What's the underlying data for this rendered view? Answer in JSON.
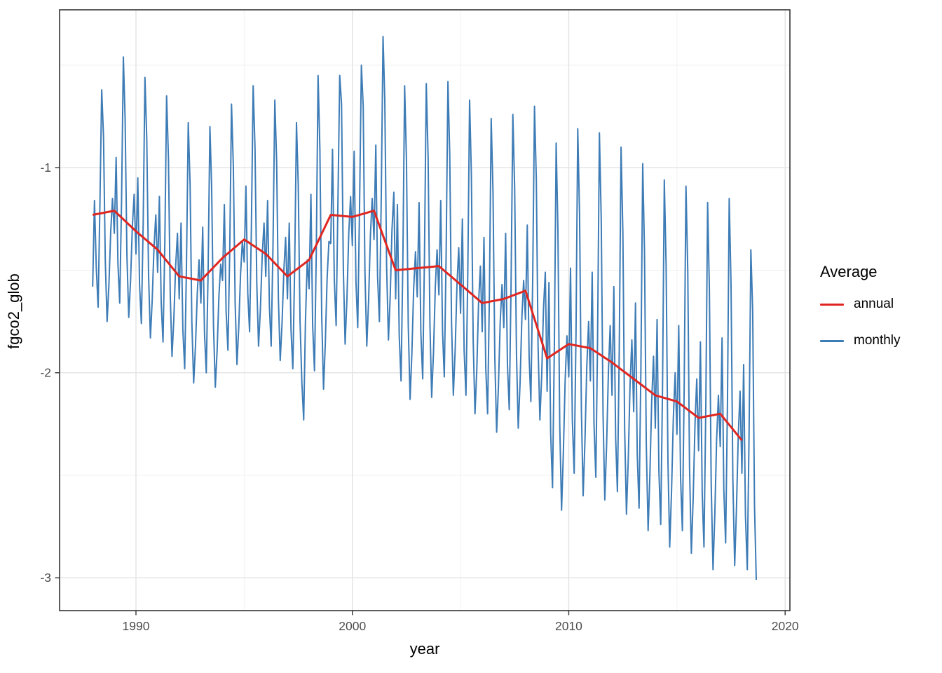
{
  "page": {
    "background": "#ffffff"
  },
  "axes": {
    "x_title": "year",
    "y_title": "fgco2_glob",
    "x_tick_labels": [
      "1990",
      "2000",
      "2010",
      "2020"
    ],
    "y_tick_labels": [
      "-1",
      "-2",
      "-3"
    ]
  },
  "legend": {
    "title": "Average",
    "entries": [
      {
        "label": "annual",
        "color": "#e02620"
      },
      {
        "label": "monthly",
        "color": "#3e7cb6"
      }
    ]
  },
  "chart_data": {
    "type": "line",
    "title": "",
    "xlabel": "year",
    "ylabel": "fgco2_glob",
    "xlim": [
      1986.47,
      2020.22
    ],
    "ylim": [
      -3.16,
      -0.23
    ],
    "x_major_ticks": [
      1990,
      2000,
      2010,
      2020
    ],
    "x_minor_gridlines": [
      1995,
      2005,
      2015
    ],
    "y_major_ticks": [
      -1,
      -2,
      -3
    ],
    "y_minor_gridlines": [
      -0.5,
      -1.5,
      -2.5
    ],
    "grid": {
      "major_color": "#e3e3e3",
      "minor_color": "#f1f1f1",
      "panel_border": "#333333",
      "tick_color": "#333333",
      "tick_label_color": "#4d4d4d"
    },
    "legend_position": "right",
    "series": [
      {
        "name": "annual",
        "color": "#e02620",
        "stroke_width": 3,
        "x": [
          1988,
          1989,
          1990,
          1991,
          1992,
          1993,
          1994,
          1995,
          1996,
          1997,
          1998,
          1999,
          2000,
          2001,
          2002,
          2003,
          2004,
          2005,
          2006,
          2007,
          2008,
          2009,
          2010,
          2011,
          2012,
          2013,
          2014,
          2015,
          2016,
          2017,
          2018
        ],
        "y": [
          -1.23,
          -1.21,
          -1.31,
          -1.4,
          -1.53,
          -1.55,
          -1.44,
          -1.35,
          -1.42,
          -1.53,
          -1.45,
          -1.23,
          -1.24,
          -1.21,
          -1.5,
          -1.49,
          -1.48,
          -1.57,
          -1.66,
          -1.64,
          -1.6,
          -1.93,
          -1.86,
          -1.88,
          -1.95,
          -2.03,
          -2.11,
          -2.14,
          -2.22,
          -2.2,
          -2.33
        ]
      },
      {
        "name": "monthly",
        "color": "#3e7cb6",
        "stroke_width": 2,
        "x_start": 1988.0,
        "x_step": 0.0833333,
        "y": [
          -1.58,
          -1.16,
          -1.49,
          -1.68,
          -1.19,
          -0.62,
          -0.85,
          -1.45,
          -1.75,
          -1.57,
          -1.31,
          -1.15,
          -1.32,
          -0.95,
          -1.47,
          -1.66,
          -1.17,
          -0.46,
          -0.76,
          -1.43,
          -1.73,
          -1.55,
          -1.29,
          -1.13,
          -1.42,
          -1.05,
          -1.57,
          -1.76,
          -1.27,
          -0.56,
          -0.86,
          -1.53,
          -1.83,
          -1.65,
          -1.39,
          -1.23,
          -1.51,
          -1.14,
          -1.66,
          -1.85,
          -1.36,
          -0.65,
          -0.95,
          -1.62,
          -1.92,
          -1.74,
          -1.48,
          -1.32,
          -1.64,
          -1.27,
          -1.79,
          -1.98,
          -1.49,
          -0.78,
          -1.08,
          -1.75,
          -2.05,
          -1.87,
          -1.61,
          -1.45,
          -1.66,
          -1.29,
          -1.81,
          -2.0,
          -1.51,
          -0.8,
          -1.1,
          -1.77,
          -2.07,
          -1.89,
          -1.63,
          -1.47,
          -1.55,
          -1.18,
          -1.7,
          -1.89,
          -1.4,
          -0.69,
          -0.99,
          -1.66,
          -1.96,
          -1.78,
          -1.52,
          -1.36,
          -1.46,
          -1.09,
          -1.61,
          -1.8,
          -1.31,
          -0.6,
          -0.9,
          -1.57,
          -1.87,
          -1.69,
          -1.43,
          -1.27,
          -1.53,
          -1.16,
          -1.68,
          -1.87,
          -1.38,
          -0.67,
          -0.97,
          -1.64,
          -1.94,
          -1.76,
          -1.5,
          -1.34,
          -1.64,
          -1.27,
          -1.79,
          -1.98,
          -1.49,
          -0.78,
          -1.08,
          -1.75,
          -2.05,
          -2.23,
          -1.75,
          -1.45,
          -1.59,
          -1.13,
          -1.77,
          -1.99,
          -1.4,
          -0.55,
          -0.91,
          -1.72,
          -2.08,
          -1.86,
          -1.54,
          -1.36,
          -1.37,
          -0.91,
          -1.55,
          -1.77,
          -1.18,
          -0.55,
          -0.69,
          -1.5,
          -1.86,
          -1.64,
          -1.32,
          -1.14,
          -1.38,
          -0.92,
          -1.56,
          -1.78,
          -1.19,
          -0.5,
          -0.7,
          -1.51,
          -1.87,
          -1.65,
          -1.33,
          -1.15,
          -1.35,
          -0.89,
          -1.53,
          -1.75,
          -1.16,
          -0.36,
          -0.67,
          -1.48,
          -1.84,
          -1.62,
          -1.3,
          -1.12,
          -1.64,
          -1.18,
          -1.82,
          -2.04,
          -1.45,
          -0.6,
          -0.96,
          -1.77,
          -2.13,
          -1.91,
          -1.59,
          -1.41,
          -1.63,
          -1.17,
          -1.81,
          -2.03,
          -1.44,
          -0.59,
          -0.95,
          -1.76,
          -2.12,
          -1.9,
          -1.58,
          -1.4,
          -1.62,
          -1.16,
          -1.8,
          -2.02,
          -1.43,
          -0.58,
          -0.94,
          -1.75,
          -2.11,
          -1.89,
          -1.57,
          -1.39,
          -1.71,
          -1.25,
          -1.89,
          -2.11,
          -1.52,
          -0.67,
          -1.03,
          -1.84,
          -2.2,
          -1.98,
          -1.66,
          -1.48,
          -1.8,
          -1.34,
          -1.98,
          -2.2,
          -1.61,
          -0.76,
          -1.12,
          -1.93,
          -2.29,
          -2.07,
          -1.75,
          -1.57,
          -1.78,
          -1.32,
          -1.96,
          -2.18,
          -1.59,
          -0.74,
          -1.1,
          -1.91,
          -2.27,
          -2.05,
          -1.73,
          -1.55,
          -1.74,
          -1.28,
          -1.92,
          -2.14,
          -1.55,
          -0.7,
          -1.06,
          -1.87,
          -2.23,
          -2.01,
          -1.69,
          -1.51,
          -2.09,
          -1.56,
          -2.3,
          -2.56,
          -1.88,
          -0.88,
          -1.3,
          -2.25,
          -2.67,
          -2.4,
          -2.04,
          -1.82,
          -2.02,
          -1.49,
          -2.23,
          -2.49,
          -1.81,
          -0.81,
          -1.23,
          -2.18,
          -2.6,
          -2.33,
          -1.97,
          -1.75,
          -2.04,
          -1.51,
          -2.25,
          -2.51,
          -1.83,
          -0.83,
          -1.25,
          -2.2,
          -2.62,
          -2.35,
          -1.99,
          -1.77,
          -2.11,
          -1.58,
          -2.32,
          -2.58,
          -1.9,
          -0.9,
          -1.32,
          -2.27,
          -2.69,
          -2.42,
          -2.06,
          -1.84,
          -2.19,
          -1.66,
          -2.4,
          -2.66,
          -1.98,
          -0.98,
          -1.4,
          -2.35,
          -2.77,
          -2.5,
          -2.14,
          -1.92,
          -2.27,
          -1.74,
          -2.48,
          -2.74,
          -2.06,
          -1.06,
          -1.48,
          -2.43,
          -2.85,
          -2.58,
          -2.22,
          -2.0,
          -2.3,
          -1.77,
          -2.51,
          -2.77,
          -2.09,
          -1.09,
          -1.51,
          -2.46,
          -2.88,
          -2.61,
          -2.25,
          -2.03,
          -2.38,
          -1.85,
          -2.59,
          -2.85,
          -2.17,
          -1.17,
          -1.59,
          -2.54,
          -2.96,
          -2.69,
          -2.33,
          -2.11,
          -2.36,
          -1.83,
          -2.57,
          -2.83,
          -2.15,
          -1.15,
          -1.57,
          -2.52,
          -2.94,
          -2.67,
          -2.31,
          -2.09,
          -2.49,
          -1.96,
          -2.7,
          -2.96,
          -2.28,
          -1.4,
          -1.7,
          -2.65,
          -3.01
        ]
      }
    ]
  }
}
